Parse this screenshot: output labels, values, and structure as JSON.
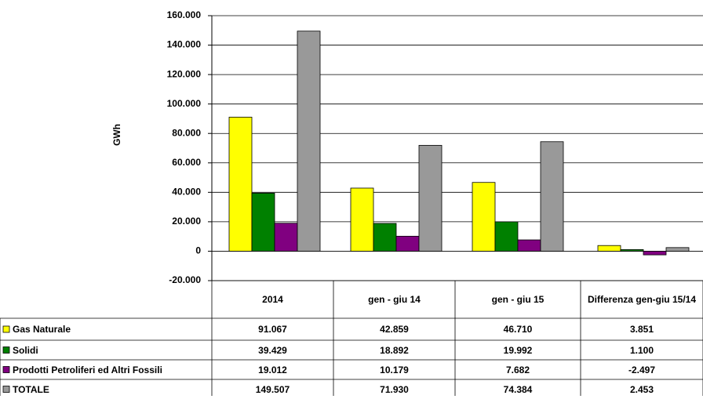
{
  "chart_data": {
    "type": "bar",
    "y_label": "GWh",
    "categories": [
      "2014",
      "gen - giu 14",
      "gen - giu 15",
      "Differenza gen-giu 15/14"
    ],
    "series": [
      {
        "name": "Gas Naturale",
        "color": "#ffff00",
        "values": [
          91067,
          42859,
          46710,
          3851
        ],
        "value_labels": [
          "91.067",
          "42.859",
          "46.710",
          "3.851"
        ]
      },
      {
        "name": "Solidi",
        "color": "#008000",
        "values": [
          39429,
          18892,
          19992,
          1100
        ],
        "value_labels": [
          "39.429",
          "18.892",
          "19.992",
          "1.100"
        ]
      },
      {
        "name": "Prodotti Petroliferi ed Altri Fossili",
        "color": "#800080",
        "values": [
          19012,
          10179,
          7682,
          -2497
        ],
        "value_labels": [
          "19.012",
          "10.179",
          "7.682",
          "-2.497"
        ]
      },
      {
        "name": "TOTALE",
        "color": "#999999",
        "values": [
          149507,
          71930,
          74384,
          2453
        ],
        "value_labels": [
          "149.507",
          "71.930",
          "74.384",
          "2.453"
        ]
      }
    ],
    "ylim": [
      -20000,
      160000
    ],
    "yticks": [
      {
        "value": -20000,
        "label": "-20.000"
      },
      0,
      {
        "value": 20000,
        "label": "20.000"
      },
      {
        "value": 40000,
        "label": "40.000"
      },
      {
        "value": 60000,
        "label": "60.000"
      },
      {
        "value": 80000,
        "label": "80.000"
      },
      {
        "value": 100000,
        "label": "100.000"
      },
      {
        "value": 120000,
        "label": "120.000"
      },
      {
        "value": 140000,
        "label": "140.000"
      },
      {
        "value": 160000,
        "label": "160.000"
      }
    ],
    "grid": true
  }
}
